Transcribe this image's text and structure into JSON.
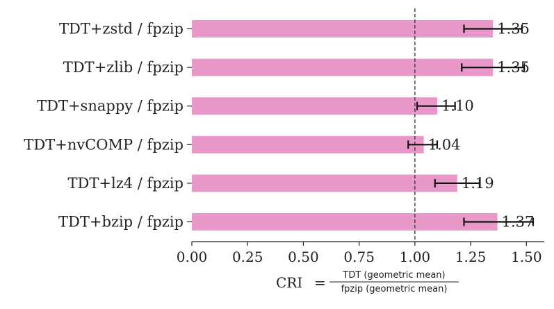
{
  "chart_data": {
    "type": "bar",
    "orientation": "horizontal",
    "categories": [
      "TDT+zstd / fpzip",
      "TDT+zlib / fpzip",
      "TDT+snappy / fpzip",
      "TDT+nvCOMP / fpzip",
      "TDT+lz4 / fpzip",
      "TDT+bzip / fpzip"
    ],
    "values": [
      1.35,
      1.35,
      1.1,
      1.04,
      1.19,
      1.37
    ],
    "value_labels": [
      "1.35",
      "1.35",
      "1.10",
      "1.04",
      "1.19",
      "1.37"
    ],
    "error_low": [
      1.22,
      1.21,
      1.01,
      0.97,
      1.09,
      1.22
    ],
    "error_high": [
      1.48,
      1.49,
      1.18,
      1.1,
      1.29,
      1.53
    ],
    "xlim": [
      0.0,
      1.58
    ],
    "xticks": [
      0.0,
      0.25,
      0.5,
      0.75,
      1.0,
      1.25,
      1.5
    ],
    "xtick_labels": [
      "0.00",
      "0.25",
      "0.50",
      "0.75",
      "1.00",
      "1.25",
      "1.50"
    ],
    "reference_line": 1.0,
    "bar_color": "#e899c9",
    "error_color": "#111111",
    "grid": false,
    "xlabel": {
      "prefix": "CRI",
      "equals": "=",
      "numerator": "TDT (geometric mean)",
      "denominator": "fpzip (geometric mean)"
    }
  }
}
